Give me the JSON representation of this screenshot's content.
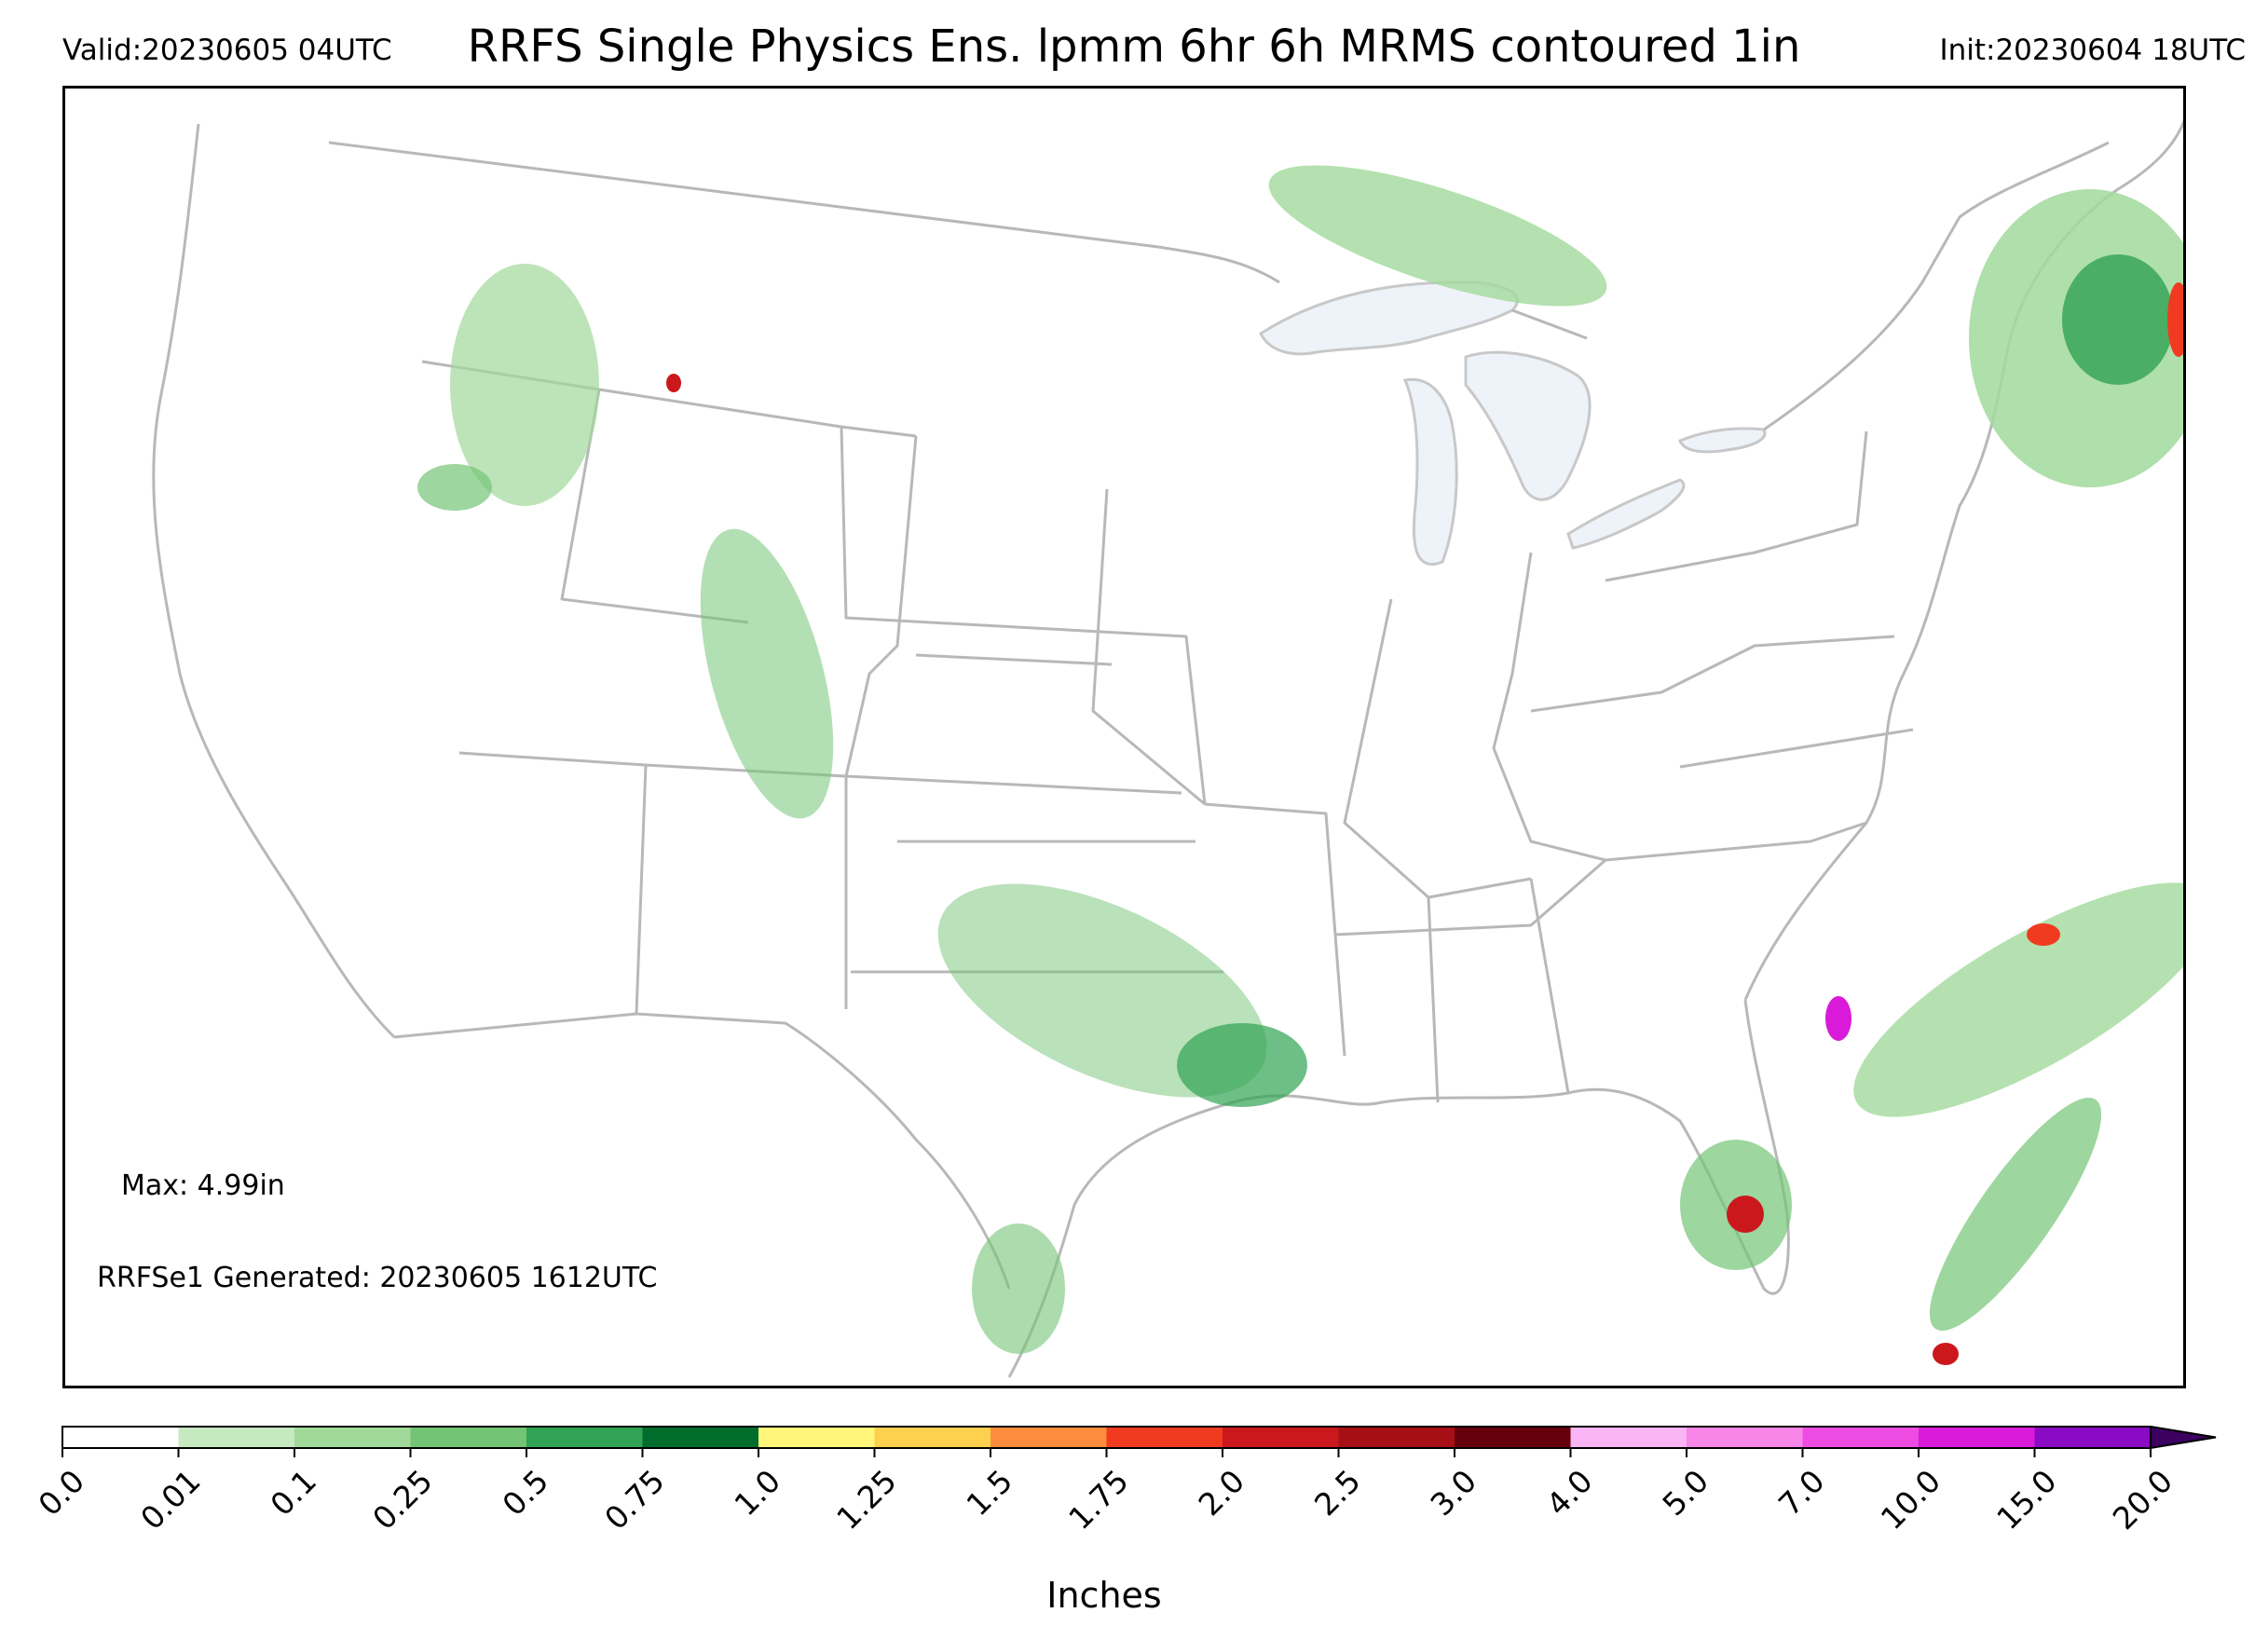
{
  "header": {
    "valid": "Valid:20230605 04UTC",
    "title": "RRFS Single Physics Ens. lpmm 6hr 6h MRMS contoured 1in",
    "init": "Init:20230604 18UTC"
  },
  "notes": {
    "max": "Max: 4.99in",
    "generated": "RRFSe1 Generated: 20230605 1612UTC"
  },
  "colorbar": {
    "label": "Inches",
    "extend": "max",
    "ticks": [
      "0.0",
      "0.01",
      "0.1",
      "0.25",
      "0.5",
      "0.75",
      "1.0",
      "1.25",
      "1.5",
      "1.75",
      "2.0",
      "2.5",
      "3.0",
      "4.0",
      "5.0",
      "7.0",
      "10.0",
      "15.0",
      "20.0"
    ],
    "colors": [
      "#ffffff",
      "#c7e9c0",
      "#a1d99b",
      "#74c476",
      "#31a354",
      "#006d2c",
      "#fff67a",
      "#fdd04d",
      "#fd8d3c",
      "#f03b20",
      "#cb181d",
      "#a50f15",
      "#67000d",
      "#fbb4f4",
      "#f786e8",
      "#ee4be3",
      "#d91ad8",
      "#8a0bc3"
    ],
    "extend_color": "#3b0060"
  },
  "map": {
    "colors": {
      "land_border": "#b5b5b5",
      "lakes": "#eef3fa",
      "mrms_contour": "#1f28d8"
    }
  }
}
